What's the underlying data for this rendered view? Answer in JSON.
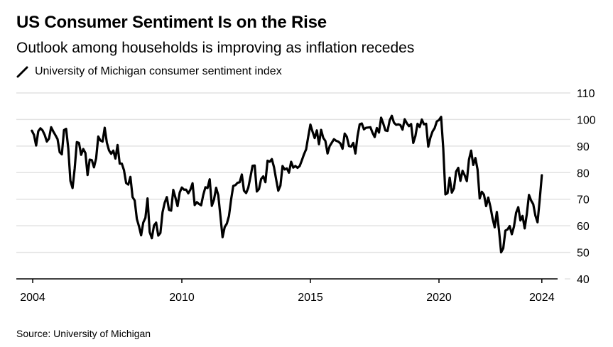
{
  "chart_data": {
    "type": "line",
    "title": "US Consumer Sentiment Is on the Rise",
    "subtitle": "Outlook among households is improving as inflation recedes",
    "source": "Source: University of Michigan",
    "xlabel": "",
    "ylabel": "",
    "ylim": [
      40,
      110
    ],
    "yticks": [
      40,
      50,
      60,
      70,
      80,
      90,
      100,
      110
    ],
    "xticks": [
      {
        "label": "2004",
        "value": 2004.2
      },
      {
        "label": "2010",
        "value": 2010
      },
      {
        "label": "2015",
        "value": 2015
      },
      {
        "label": "2020",
        "value": 2020
      },
      {
        "label": "2024",
        "value": 2024
      }
    ],
    "grid": true,
    "legend_position": "top-left",
    "series": [
      {
        "name": "University of Michigan consumer sentiment index",
        "color": "#000000",
        "start": {
          "year": 2004,
          "month": 3
        },
        "frequency": "monthly",
        "values": [
          95.8,
          94.2,
          90.2,
          95.6,
          96.7,
          95.9,
          94.2,
          91.7,
          92.8,
          97.1,
          95.5,
          94.1,
          92.6,
          87.7,
          86.9,
          96.0,
          96.5,
          89.1,
          76.9,
          74.2,
          81.6,
          91.5,
          91.2,
          86.7,
          88.9,
          87.4,
          79.1,
          84.9,
          84.7,
          82.0,
          85.4,
          93.6,
          92.1,
          91.7,
          96.9,
          91.3,
          88.4,
          87.1,
          88.3,
          85.3,
          90.4,
          83.4,
          83.4,
          80.9,
          76.1,
          75.5,
          78.4,
          70.8,
          69.5,
          62.6,
          59.8,
          56.4,
          61.2,
          63.0,
          70.3,
          57.6,
          55.3,
          60.1,
          61.2,
          56.3,
          57.3,
          65.1,
          68.7,
          70.8,
          66.0,
          65.7,
          73.5,
          70.6,
          67.4,
          72.5,
          74.4,
          73.6,
          73.6,
          72.2,
          73.6,
          76.0,
          67.8,
          68.9,
          68.2,
          67.7,
          71.6,
          74.5,
          74.2,
          77.5,
          67.5,
          69.8,
          74.3,
          71.5,
          63.7,
          55.7,
          59.5,
          60.8,
          63.7,
          69.9,
          75.0,
          75.3,
          76.2,
          76.4,
          79.3,
          73.2,
          72.3,
          74.3,
          78.3,
          82.6,
          82.7,
          72.9,
          73.8,
          77.6,
          78.6,
          76.4,
          84.5,
          84.1,
          85.1,
          82.1,
          77.5,
          73.2,
          75.1,
          82.5,
          81.2,
          81.6,
          80.0,
          84.1,
          81.9,
          82.5,
          81.8,
          82.5,
          84.6,
          86.9,
          88.8,
          93.6,
          98.1,
          95.4,
          93.0,
          95.9,
          90.7,
          96.1,
          93.1,
          91.9,
          87.2,
          90.0,
          91.3,
          92.6,
          92.0,
          91.7,
          91.0,
          89.0,
          94.7,
          93.5,
          90.0,
          89.8,
          91.2,
          87.2,
          93.8,
          98.2,
          98.5,
          96.3,
          96.9,
          97.0,
          97.1,
          95.0,
          93.4,
          96.8,
          95.1,
          100.7,
          98.5,
          95.9,
          95.7,
          99.7,
          101.4,
          98.8,
          98.0,
          98.2,
          97.9,
          96.2,
          100.1,
          98.6,
          97.5,
          98.3,
          91.2,
          93.8,
          98.4,
          97.2,
          100.0,
          98.2,
          98.4,
          89.8,
          93.2,
          95.5,
          96.8,
          99.3,
          99.8,
          101.0,
          89.1,
          71.8,
          72.3,
          78.1,
          72.5,
          74.1,
          80.4,
          81.8,
          76.9,
          80.7,
          79.0,
          76.8,
          84.9,
          88.3,
          82.9,
          85.5,
          81.2,
          70.3,
          72.8,
          71.7,
          67.4,
          70.6,
          67.2,
          62.8,
          59.4,
          65.2,
          58.4,
          50.0,
          51.5,
          58.2,
          58.6,
          59.9,
          56.8,
          59.7,
          64.9,
          67.0,
          62.0,
          63.7,
          59.0,
          64.4,
          71.6,
          69.5,
          68.1,
          63.8,
          61.3,
          69.7,
          79.0
        ]
      }
    ]
  },
  "legend": {
    "icon": "line-swatch-icon",
    "label": "University of Michigan consumer sentiment index"
  }
}
